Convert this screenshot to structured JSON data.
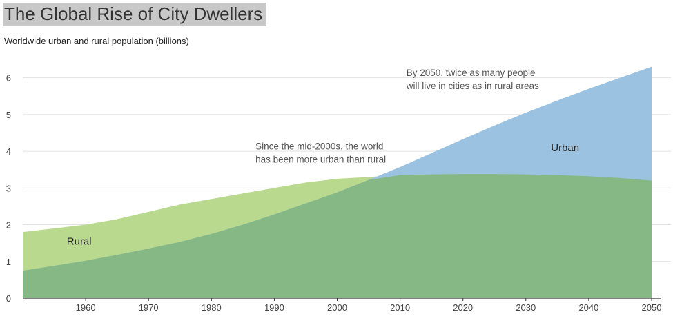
{
  "header": {
    "title": "The Global Rise of City Dwellers",
    "subtitle": "Worldwide urban and rural population (billions)"
  },
  "chart_data": {
    "type": "area",
    "title": "The Global Rise of City Dwellers",
    "subtitle": "Worldwide urban and rural population (billions)",
    "xlabel": "",
    "ylabel": "",
    "xlim": [
      1950,
      2050
    ],
    "ylim": [
      0,
      6.5
    ],
    "grid": true,
    "x": [
      1950,
      1955,
      1960,
      1965,
      1970,
      1975,
      1980,
      1985,
      1990,
      1995,
      2000,
      2005,
      2010,
      2015,
      2020,
      2025,
      2030,
      2035,
      2040,
      2045,
      2050
    ],
    "x_ticks": [
      1960,
      1970,
      1980,
      1990,
      2000,
      2010,
      2020,
      2030,
      2040,
      2050
    ],
    "y_ticks": [
      0,
      1,
      2,
      3,
      4,
      5,
      6
    ],
    "series": [
      {
        "name": "Rural",
        "color": "#85b884",
        "values": [
          1.8,
          1.9,
          2.0,
          2.15,
          2.35,
          2.55,
          2.7,
          2.85,
          3.0,
          3.15,
          3.25,
          3.3,
          3.35,
          3.37,
          3.38,
          3.38,
          3.37,
          3.35,
          3.32,
          3.27,
          3.2
        ]
      },
      {
        "name": "Urban",
        "color": "#9bc2e0",
        "values": [
          0.75,
          0.88,
          1.02,
          1.18,
          1.35,
          1.53,
          1.75,
          2.0,
          2.28,
          2.58,
          2.88,
          3.22,
          3.57,
          3.95,
          4.33,
          4.7,
          5.05,
          5.38,
          5.7,
          6.0,
          6.3
        ]
      }
    ],
    "overlap_color": "#b9d98f",
    "series_labels": [
      {
        "text": "Rural",
        "x": 1957,
        "y": 1.55
      },
      {
        "text": "Urban",
        "x": 2034,
        "y": 4.1
      }
    ],
    "annotations": [
      {
        "lines": [
          "Since the mid-2000s, the world",
          "has been more urban than rural"
        ],
        "x": 1987,
        "y": 4.05
      },
      {
        "lines": [
          "By 2050, twice as many people",
          "will live in cities as in rural areas"
        ],
        "x": 2011,
        "y": 6.05
      }
    ]
  }
}
